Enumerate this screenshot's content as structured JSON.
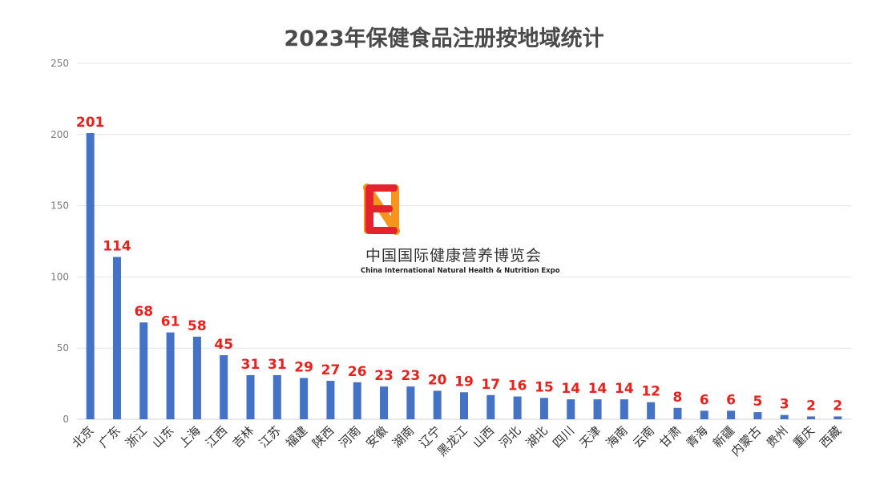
{
  "chart_data": {
    "type": "bar",
    "title": "2023年保健食品注册按地域统计",
    "xlabel": "",
    "ylabel": "",
    "ylim": [
      0,
      250
    ],
    "yticks": [
      0,
      50,
      100,
      150,
      200,
      250
    ],
    "grid": true,
    "legend": "none",
    "categories": [
      "北京",
      "广东",
      "浙江",
      "山东",
      "上海",
      "江西",
      "吉林",
      "江苏",
      "福建",
      "陕西",
      "河南",
      "安徽",
      "湖南",
      "辽宁",
      "黑龙江",
      "山西",
      "河北",
      "湖北",
      "四川",
      "天津",
      "海南",
      "云南",
      "甘肃",
      "青海",
      "新疆",
      "内蒙古",
      "贵州",
      "重庆",
      "西藏"
    ],
    "values": [
      201,
      114,
      68,
      61,
      58,
      45,
      31,
      31,
      29,
      27,
      26,
      23,
      23,
      20,
      19,
      17,
      16,
      15,
      14,
      14,
      14,
      12,
      8,
      6,
      6,
      5,
      3,
      2,
      2
    ],
    "colors": {
      "bar": "#4472c4",
      "data_label": "#e8211d",
      "grid": "#e4e4e4",
      "axis": "#d0d0d0"
    }
  },
  "logo": {
    "letters": [
      "N",
      "H",
      "N",
      "E"
    ],
    "letter_colors": [
      "#1aa3e8",
      "#8cc63f",
      "#f7941d",
      "#e5232d"
    ],
    "name_cn": "中国国际健康营养博览会",
    "name_en": "China International Natural Health & Nutrition Expo"
  }
}
